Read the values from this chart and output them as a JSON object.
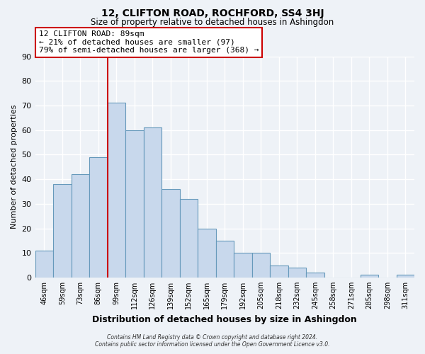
{
  "title": "12, CLIFTON ROAD, ROCHFORD, SS4 3HJ",
  "subtitle": "Size of property relative to detached houses in Ashingdon",
  "xlabel": "Distribution of detached houses by size in Ashingdon",
  "ylabel": "Number of detached properties",
  "bar_labels": [
    "46sqm",
    "59sqm",
    "73sqm",
    "86sqm",
    "99sqm",
    "112sqm",
    "126sqm",
    "139sqm",
    "152sqm",
    "165sqm",
    "179sqm",
    "192sqm",
    "205sqm",
    "218sqm",
    "232sqm",
    "245sqm",
    "258sqm",
    "271sqm",
    "285sqm",
    "298sqm",
    "311sqm"
  ],
  "bar_values": [
    11,
    38,
    42,
    49,
    71,
    60,
    61,
    36,
    32,
    20,
    15,
    10,
    10,
    5,
    4,
    2,
    0,
    0,
    1,
    0,
    1
  ],
  "bar_color": "#c8d8ec",
  "bar_edge_color": "#6699bb",
  "vline_x_index": 3.5,
  "vline_color": "#cc0000",
  "ylim": [
    0,
    90
  ],
  "yticks": [
    0,
    10,
    20,
    30,
    40,
    50,
    60,
    70,
    80,
    90
  ],
  "annotation_title": "12 CLIFTON ROAD: 89sqm",
  "annotation_line1": "← 21% of detached houses are smaller (97)",
  "annotation_line2": "79% of semi-detached houses are larger (368) →",
  "annotation_box_color": "#ffffff",
  "annotation_box_edge": "#cc0000",
  "background_color": "#eef2f7",
  "grid_color": "#ffffff",
  "footer1": "Contains HM Land Registry data © Crown copyright and database right 2024.",
  "footer2": "Contains public sector information licensed under the Open Government Licence v3.0."
}
